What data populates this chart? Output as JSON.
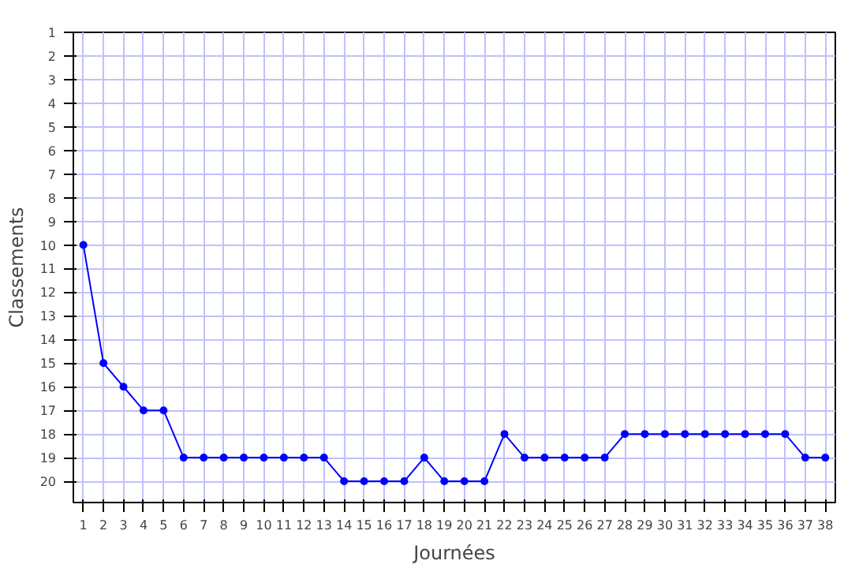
{
  "chart_data": {
    "type": "line",
    "xlabel": "Journées",
    "ylabel": "Classements",
    "x": [
      1,
      2,
      3,
      4,
      5,
      6,
      7,
      8,
      9,
      10,
      11,
      12,
      13,
      14,
      15,
      16,
      17,
      18,
      19,
      20,
      21,
      22,
      23,
      24,
      25,
      26,
      27,
      28,
      29,
      30,
      31,
      32,
      33,
      34,
      35,
      36,
      37,
      38
    ],
    "series": [
      {
        "color": "#0000ff",
        "values": [
          10,
          15,
          16,
          17,
          17,
          19,
          19,
          19,
          19,
          19,
          19,
          19,
          19,
          20,
          20,
          20,
          20,
          19,
          20,
          20,
          20,
          18,
          19,
          19,
          19,
          19,
          19,
          18,
          18,
          18,
          18,
          18,
          18,
          18,
          18,
          18,
          19,
          19
        ]
      }
    ],
    "xlim": [
      0.5,
      38.5
    ],
    "ylim": [
      20.9,
      1
    ],
    "xticks": [
      1,
      2,
      3,
      4,
      5,
      6,
      7,
      8,
      9,
      10,
      11,
      12,
      13,
      14,
      15,
      16,
      17,
      18,
      19,
      20,
      21,
      22,
      23,
      24,
      25,
      26,
      27,
      28,
      29,
      30,
      31,
      32,
      33,
      34,
      35,
      36,
      37,
      38
    ],
    "yticks": [
      1,
      2,
      3,
      4,
      5,
      6,
      7,
      8,
      9,
      10,
      11,
      12,
      13,
      14,
      15,
      16,
      17,
      18,
      19,
      20
    ],
    "grid": true,
    "marker": "circle",
    "line_style": "solid"
  }
}
